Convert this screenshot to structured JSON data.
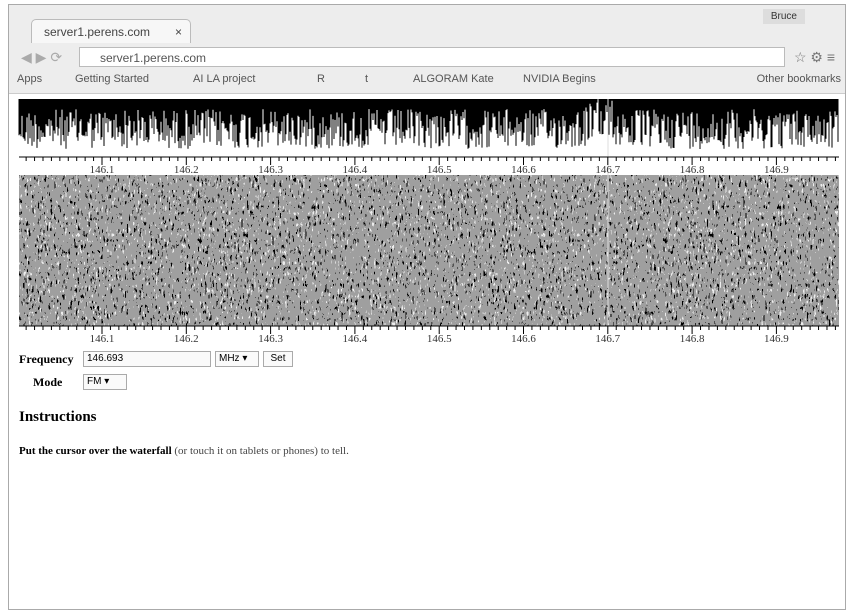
{
  "browser": {
    "tab_title": "server1.perens.com",
    "tab_close": "×",
    "user": "Bruce",
    "address": "server1.perens.com",
    "bookmarks": [
      "Apps",
      "Getting Started",
      "AI LA project",
      "R",
      "t",
      "ALGORAM Kate",
      "NVIDIA Begins"
    ],
    "other_bookmarks": "Other bookmarks"
  },
  "frequency_axis": {
    "labels": [
      "146.1",
      "146.2",
      "146.3",
      "146.4",
      "146.5",
      "146.6",
      "146.7",
      "146.8",
      "146.9"
    ]
  },
  "controls": {
    "frequency_label": "Frequency",
    "frequency_value": "146.693",
    "unit": "MHz",
    "set_button": "Set",
    "mode_label": "Mode",
    "mode_value": "FM"
  },
  "instructions": {
    "heading": "Instructions",
    "bold": "Put the cursor over the waterfall",
    "rest": " (or touch it on tablets or phones) to tell."
  }
}
